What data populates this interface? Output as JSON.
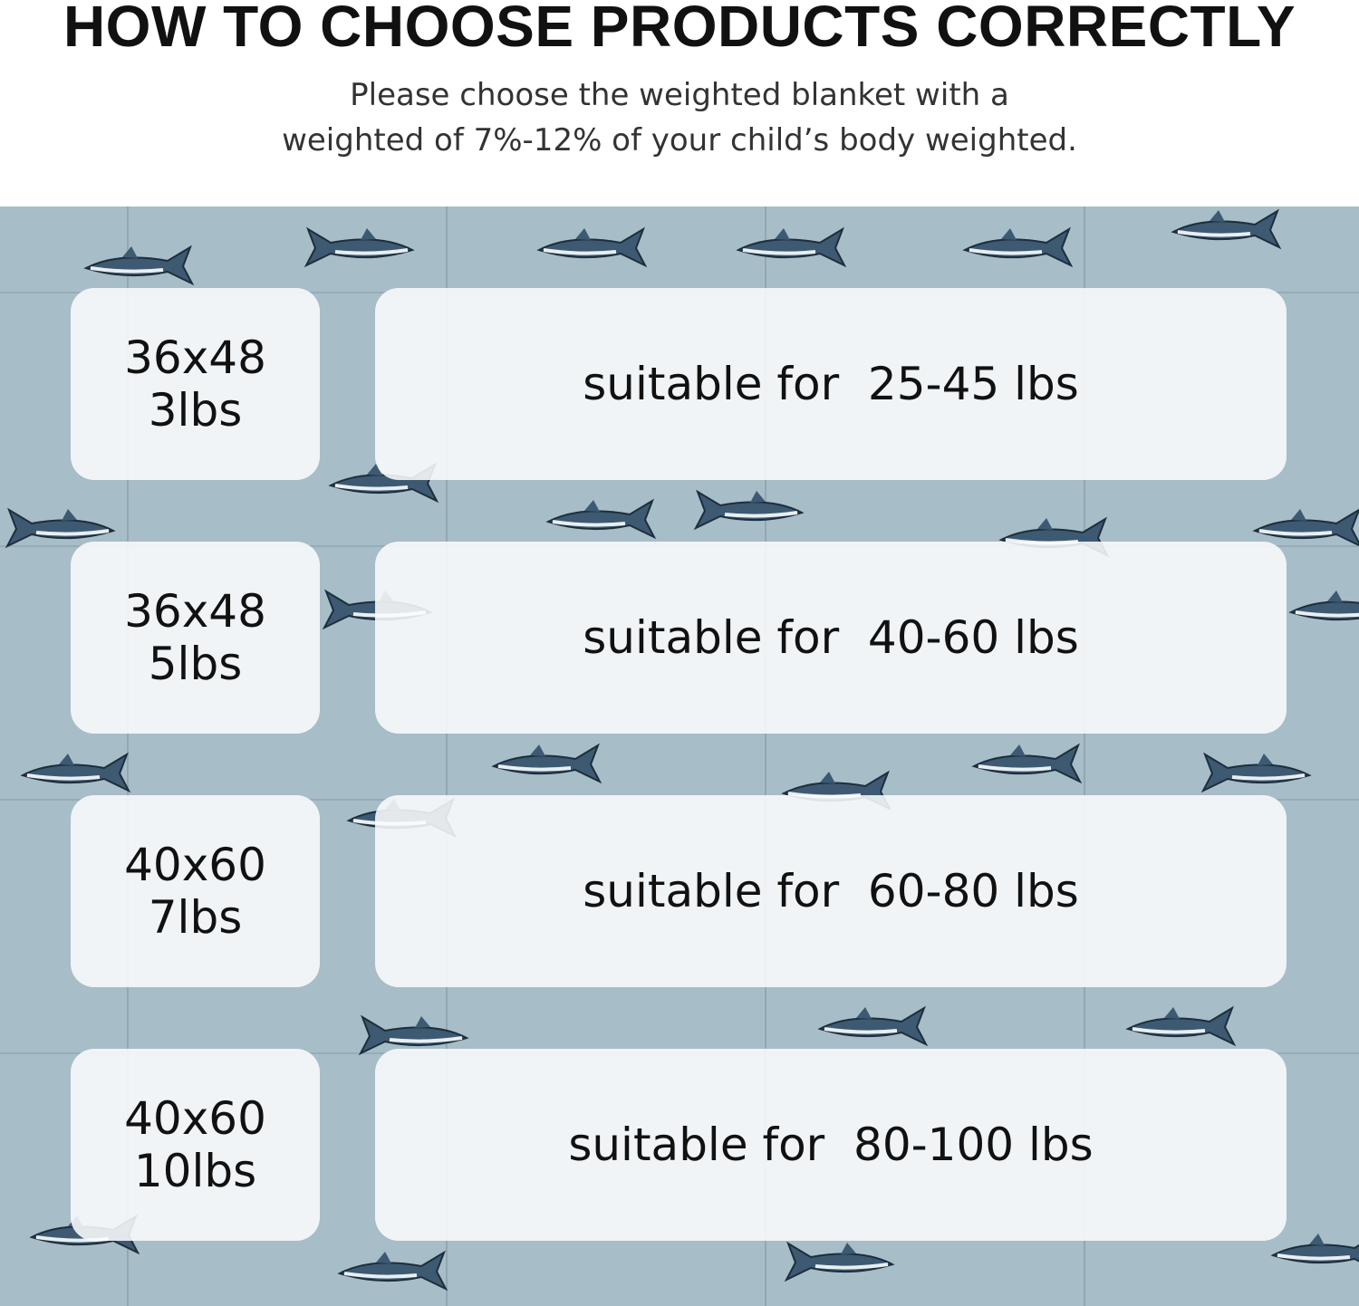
{
  "header": {
    "title": "HOW TO CHOOSE PRODUCTS CORRECTLY",
    "subtitle_line1": "Please choose the weighted blanket with a",
    "subtitle_line2": "weighted of 7%-12% of your child’s body weighted."
  },
  "colors": {
    "background_fabric": "#a7bdc8",
    "shark": "#3d5a72",
    "box": "#f7fafb"
  },
  "options": [
    {
      "size": "36x48",
      "weight": "3lbs",
      "suitable": "suitable for  25-45 lbs"
    },
    {
      "size": "36x48",
      "weight": "5lbs",
      "suitable": "suitable for  40-60 lbs"
    },
    {
      "size": "40x60",
      "weight": "7lbs",
      "suitable": "suitable for  60-80 lbs"
    },
    {
      "size": "40x60",
      "weight": "10lbs",
      "suitable": "suitable for  80-100 lbs"
    }
  ]
}
